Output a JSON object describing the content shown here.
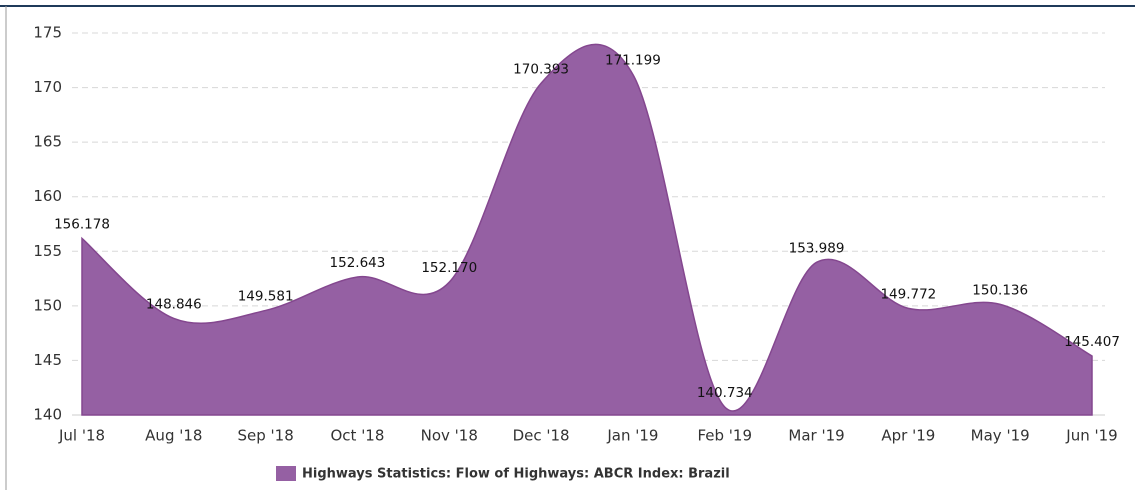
{
  "chart_data": {
    "type": "area",
    "categories": [
      "Jul '18",
      "Aug '18",
      "Sep '18",
      "Oct '18",
      "Nov '18",
      "Dec '18",
      "Jan '19",
      "Feb '19",
      "Mar '19",
      "Apr '19",
      "May '19",
      "Jun '19"
    ],
    "series": [
      {
        "name": "Highways Statistics: Flow of Highways: ABCR Index: Brazil",
        "color": "#9560a3",
        "values": [
          156.178,
          148.846,
          149.581,
          152.643,
          152.17,
          170.393,
          171.199,
          140.734,
          153.989,
          149.772,
          150.136,
          145.407
        ],
        "value_labels": [
          "156.178",
          "148.846",
          "149.581",
          "152.643",
          "152.170",
          "170.393",
          "171.199",
          "140.734",
          "153.989",
          "149.772",
          "150.136",
          "145.407"
        ]
      }
    ],
    "ylim": [
      140,
      175
    ],
    "yticks": [
      140,
      145,
      150,
      155,
      160,
      165,
      170,
      175
    ],
    "grid": true,
    "legend": "bottom"
  }
}
